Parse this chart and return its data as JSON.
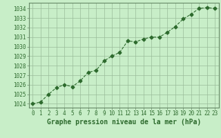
{
  "x": [
    0,
    1,
    2,
    3,
    4,
    5,
    6,
    7,
    8,
    9,
    10,
    11,
    12,
    13,
    14,
    15,
    16,
    17,
    18,
    19,
    20,
    21,
    22,
    23
  ],
  "y": [
    1024.0,
    1024.2,
    1025.0,
    1025.7,
    1026.0,
    1025.8,
    1026.4,
    1027.3,
    1027.5,
    1028.5,
    1029.0,
    1029.4,
    1030.6,
    1030.5,
    1030.8,
    1031.0,
    1031.0,
    1031.5,
    1032.1,
    1032.9,
    1033.4,
    1034.0,
    1034.1,
    1034.0
  ],
  "line_color": "#2d6a2d",
  "marker": "D",
  "marker_size": 2.5,
  "bg_color": "#c8eec8",
  "plot_bg_color": "#c8eec8",
  "grid_color": "#99bb99",
  "border_color": "#668866",
  "ylabel_ticks": [
    1024,
    1025,
    1026,
    1027,
    1028,
    1029,
    1030,
    1031,
    1032,
    1033,
    1034
  ],
  "xlabel": "Graphe pression niveau de la mer (hPa)",
  "xlim": [
    -0.5,
    23.5
  ],
  "ylim": [
    1023.6,
    1034.6
  ],
  "tick_fontsize": 5.5,
  "xlabel_fontsize": 7.0,
  "line_width": 0.8
}
